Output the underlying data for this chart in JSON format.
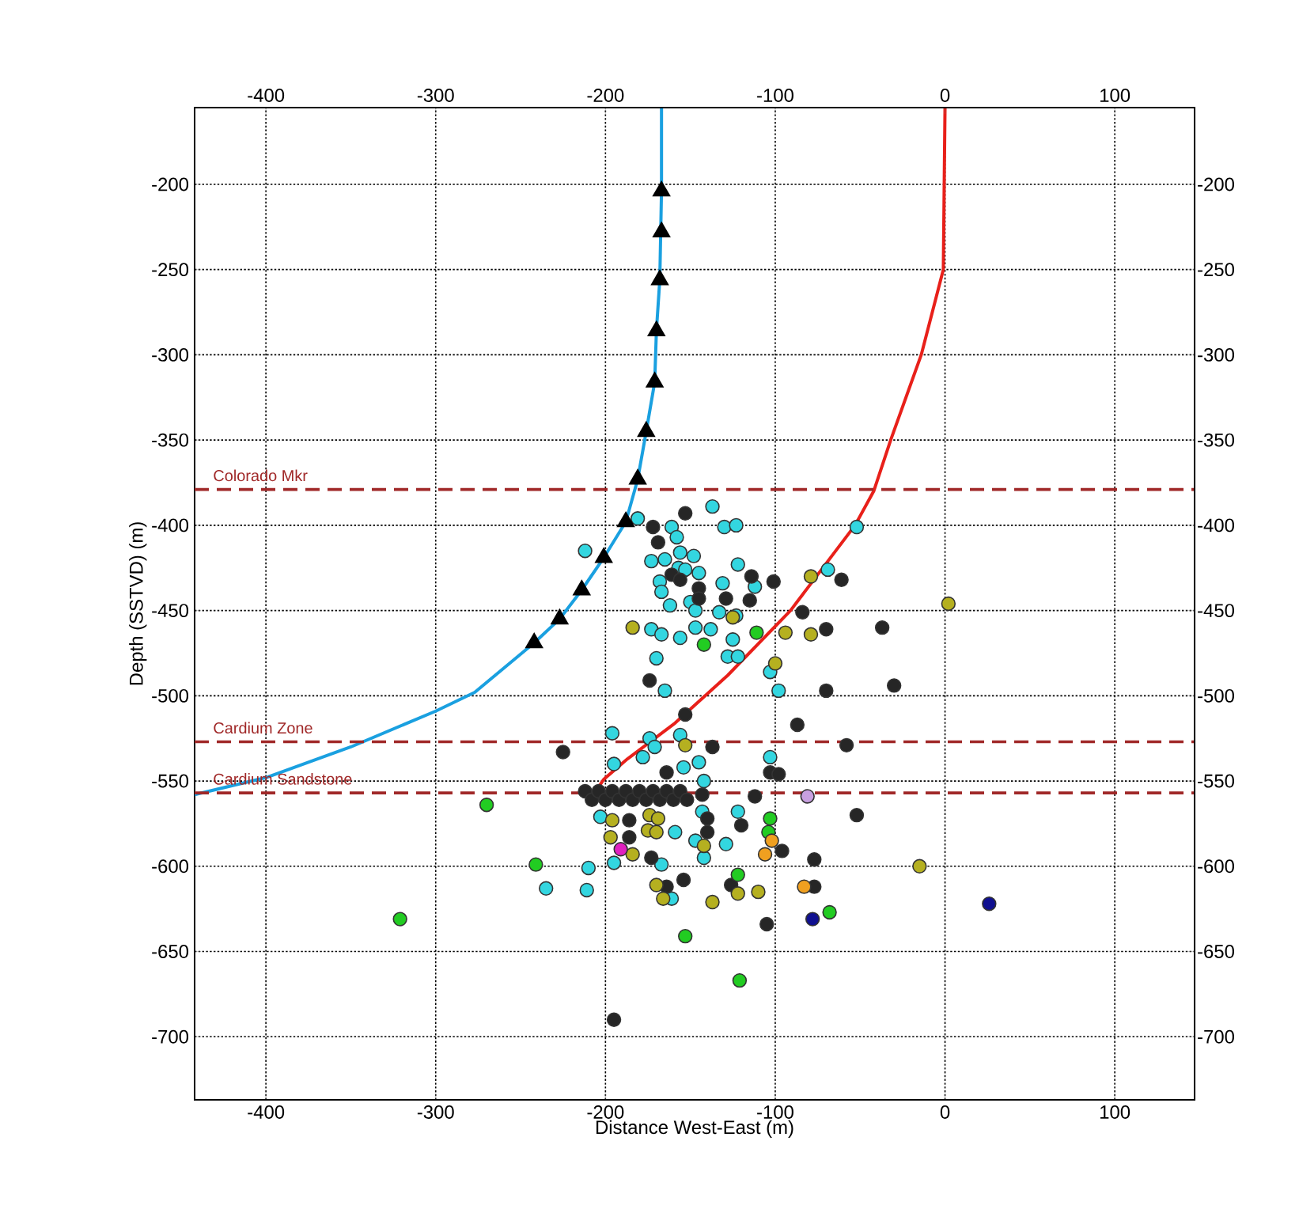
{
  "chart_data": {
    "type": "scatter",
    "xlabel": "Distance West-East (m)",
    "ylabel": "Depth (SSTVD) (m)",
    "xlim": [
      -442,
      147
    ],
    "ylim": [
      -737,
      -155
    ],
    "x2lim": [
      -442,
      147
    ],
    "y2lim": [
      -737,
      -155
    ],
    "xticks": [
      -400,
      -300,
      -200,
      -100,
      0,
      100
    ],
    "x2ticks": [
      -400,
      -300,
      -200,
      -100,
      0,
      100
    ],
    "yticks": [
      -700,
      -650,
      -600,
      -550,
      -500,
      -450,
      -400,
      -350,
      -300,
      -250,
      -200
    ],
    "y2ticks": [
      -700,
      -650,
      -600,
      -550,
      -500,
      -450,
      -400,
      -350,
      -300,
      -250,
      -200
    ],
    "grid": true,
    "ref_lines": [
      {
        "axis": "y",
        "value": -379,
        "label": "Colorado Mkr",
        "color": "#a02828",
        "line_style": "dashed"
      },
      {
        "axis": "y",
        "value": -527,
        "label": "Cardium Zone",
        "color": "#a02828",
        "line_style": "dashed"
      },
      {
        "axis": "y",
        "value": -557,
        "label": "Cardium Sandstone",
        "color": "#a02828",
        "line_style": "dashed"
      }
    ],
    "series": [
      {
        "type": "line",
        "color": "#1aa0e0",
        "marker": "none",
        "x": [
          -167,
          -167,
          -168,
          -170,
          -171,
          -176,
          -181,
          -188,
          -201,
          -214,
          -227,
          -242,
          -277,
          -300,
          -350,
          -400,
          -442
        ],
        "values": [
          -155,
          -204,
          -256,
          -286,
          -316,
          -345,
          -373,
          -398,
          -419,
          -438,
          -455,
          -469,
          -498,
          -509,
          -530,
          -548,
          -558
        ]
      },
      {
        "type": "line",
        "color": "#e8201a",
        "marker": "none",
        "x": [
          0,
          -1,
          -14,
          -32,
          -42,
          -53,
          -91,
          -128,
          -159,
          -187,
          -201,
          -205
        ],
        "values": [
          -155,
          -250,
          -300,
          -350,
          -380,
          -400,
          -450,
          -488,
          -516,
          -537,
          -549,
          -555
        ]
      },
      {
        "color": "#33d6e0",
        "marker": "circle",
        "x": [
          -137,
          -212,
          -181,
          -161,
          -158,
          -130,
          -123,
          -52,
          -173,
          -165,
          -156,
          -148,
          -157,
          -153,
          -145,
          -168,
          -167,
          -122,
          -69,
          -131,
          -112,
          -162,
          -150,
          -147,
          -133,
          -123,
          -173,
          -167,
          -156,
          -147,
          -138,
          -125,
          -128,
          -122,
          -170,
          -165,
          -98,
          -103,
          -196,
          -174,
          -171,
          -178,
          -195,
          -156,
          -145,
          -142,
          -103,
          -154,
          -203,
          -143,
          -122,
          -235,
          -211,
          -210,
          -195,
          -167,
          -159,
          -147,
          -142,
          -129,
          -161
        ],
        "values": [
          -389,
          -415,
          -396,
          -401,
          -407,
          -401,
          -400,
          -401,
          -421,
          -420,
          -416,
          -418,
          -425,
          -426,
          -428,
          -433,
          -439,
          -423,
          -426,
          -434,
          -436,
          -447,
          -445,
          -450,
          -451,
          -453,
          -461,
          -464,
          -466,
          -460,
          -461,
          -467,
          -477,
          -477,
          -478,
          -497,
          -497,
          -486,
          -522,
          -525,
          -530,
          -536,
          -540,
          -523,
          -539,
          -550,
          -536,
          -542,
          -571,
          -568,
          -568,
          -613,
          -614,
          -601,
          -598,
          -599,
          -580,
          -585,
          -595,
          -587,
          -619
        ]
      },
      {
        "color": "#262626",
        "marker": "circle",
        "x": [
          -153,
          -172,
          -169,
          -161,
          -156,
          -145,
          -145,
          -129,
          -114,
          -115,
          -101,
          -61,
          -84,
          -70,
          -37,
          -174,
          -70,
          -30,
          -153,
          -87,
          -225,
          -137,
          -58,
          -164,
          -103,
          -98,
          -143,
          -112,
          -120,
          -52,
          -195,
          -186,
          -173,
          -186,
          -140,
          -140,
          -96,
          -77,
          -154,
          -164,
          -126,
          -77,
          -105,
          -212,
          -208,
          -204,
          -200,
          -196,
          -192,
          -188,
          -184,
          -180,
          -176,
          -172,
          -168,
          -164,
          -160,
          -156,
          -152
        ],
        "values": [
          -393,
          -401,
          -410,
          -429,
          -432,
          -437,
          -443,
          -443,
          -430,
          -444,
          -433,
          -432,
          -451,
          -461,
          -460,
          -491,
          -497,
          -494,
          -511,
          -517,
          -533,
          -530,
          -529,
          -545,
          -545,
          -546,
          -558,
          -559,
          -576,
          -570,
          -690,
          -583,
          -595,
          -573,
          -572,
          -580,
          -591,
          -596,
          -608,
          -612,
          -611,
          -612,
          -634,
          -556,
          -561,
          -556,
          -561,
          -556,
          -561,
          -556,
          -561,
          -556,
          -561,
          -556,
          -561,
          -556,
          -561,
          -556,
          -561
        ]
      },
      {
        "color": "#b5b020",
        "marker": "circle",
        "x": [
          -184,
          -125,
          -94,
          -79,
          -79,
          -100,
          -153,
          2,
          -197,
          -175,
          -170,
          -184,
          -170,
          -166,
          -142,
          -15,
          -122,
          -110,
          -137,
          -196,
          -174,
          -169
        ],
        "values": [
          -460,
          -454,
          -463,
          -430,
          -464,
          -481,
          -529,
          -446,
          -583,
          -579,
          -580,
          -593,
          -611,
          -619,
          -588,
          -600,
          -616,
          -615,
          -621,
          -573,
          -570,
          -572
        ]
      },
      {
        "color": "#22cc22",
        "marker": "circle",
        "x": [
          -111,
          -142,
          -270,
          -241,
          -321,
          -104,
          -122,
          -68,
          -153,
          -121,
          -103
        ],
        "values": [
          -463,
          -470,
          -564,
          -599,
          -631,
          -580,
          -605,
          -627,
          -641,
          -667,
          -572
        ]
      },
      {
        "color": "#f0a020",
        "marker": "circle",
        "x": [
          -102,
          -106,
          -83
        ],
        "values": [
          -585,
          -593,
          -612
        ]
      },
      {
        "color": "#c8a0e0",
        "marker": "circle",
        "x": [
          -81
        ],
        "values": [
          -559
        ]
      },
      {
        "color": "#e020c0",
        "marker": "circle",
        "x": [
          -191
        ],
        "values": [
          -590
        ]
      },
      {
        "color": "#101090",
        "marker": "circle",
        "x": [
          -78,
          26
        ],
        "values": [
          -631,
          -622
        ]
      },
      {
        "color": "#000000",
        "marker": "triangle",
        "x": [
          -167,
          -167,
          -168,
          -170,
          -171,
          -176,
          -181,
          -188,
          -201,
          -214,
          -227,
          -242
        ],
        "values": [
          -204,
          -228,
          -256,
          -286,
          -316,
          -345,
          -373,
          -398,
          -419,
          -438,
          -455,
          -469
        ]
      }
    ]
  }
}
